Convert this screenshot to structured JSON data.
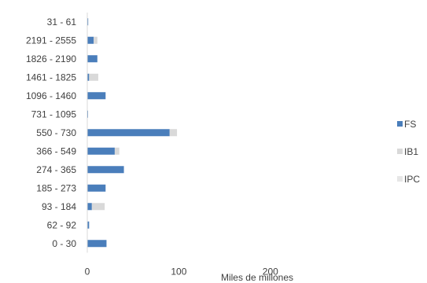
{
  "chart_data": {
    "type": "bar",
    "orientation": "horizontal",
    "stacked": true,
    "categories": [
      "31 - 61",
      "2191 - 2555",
      "1826 - 2190",
      "1461 - 1825",
      "1096 - 1460",
      "731 - 1095",
      "550 - 730",
      "366 - 549",
      "274 - 365",
      "185 - 273",
      "93 - 184",
      "62 - 92",
      "0 - 30"
    ],
    "series": [
      {
        "name": "FS",
        "color": "#4a7ebb",
        "values": [
          1,
          7,
          11,
          2,
          20,
          0.5,
          90,
          30,
          40,
          20,
          5,
          2,
          21
        ]
      },
      {
        "name": "IB1",
        "color": "#d9d9d9",
        "values": [
          0,
          4,
          0,
          10,
          0,
          0,
          8,
          5,
          0,
          0,
          14,
          0,
          0
        ]
      },
      {
        "name": "IPC",
        "color": "#e6e6e6",
        "values": [
          0,
          0,
          0,
          0,
          0,
          0,
          0,
          0,
          0,
          0,
          0,
          0,
          0
        ]
      }
    ],
    "xlabel": "Miles de millones",
    "xlim": [
      0,
      250
    ],
    "xticks": [
      0,
      100,
      200
    ],
    "grid": false,
    "legend": "right"
  }
}
